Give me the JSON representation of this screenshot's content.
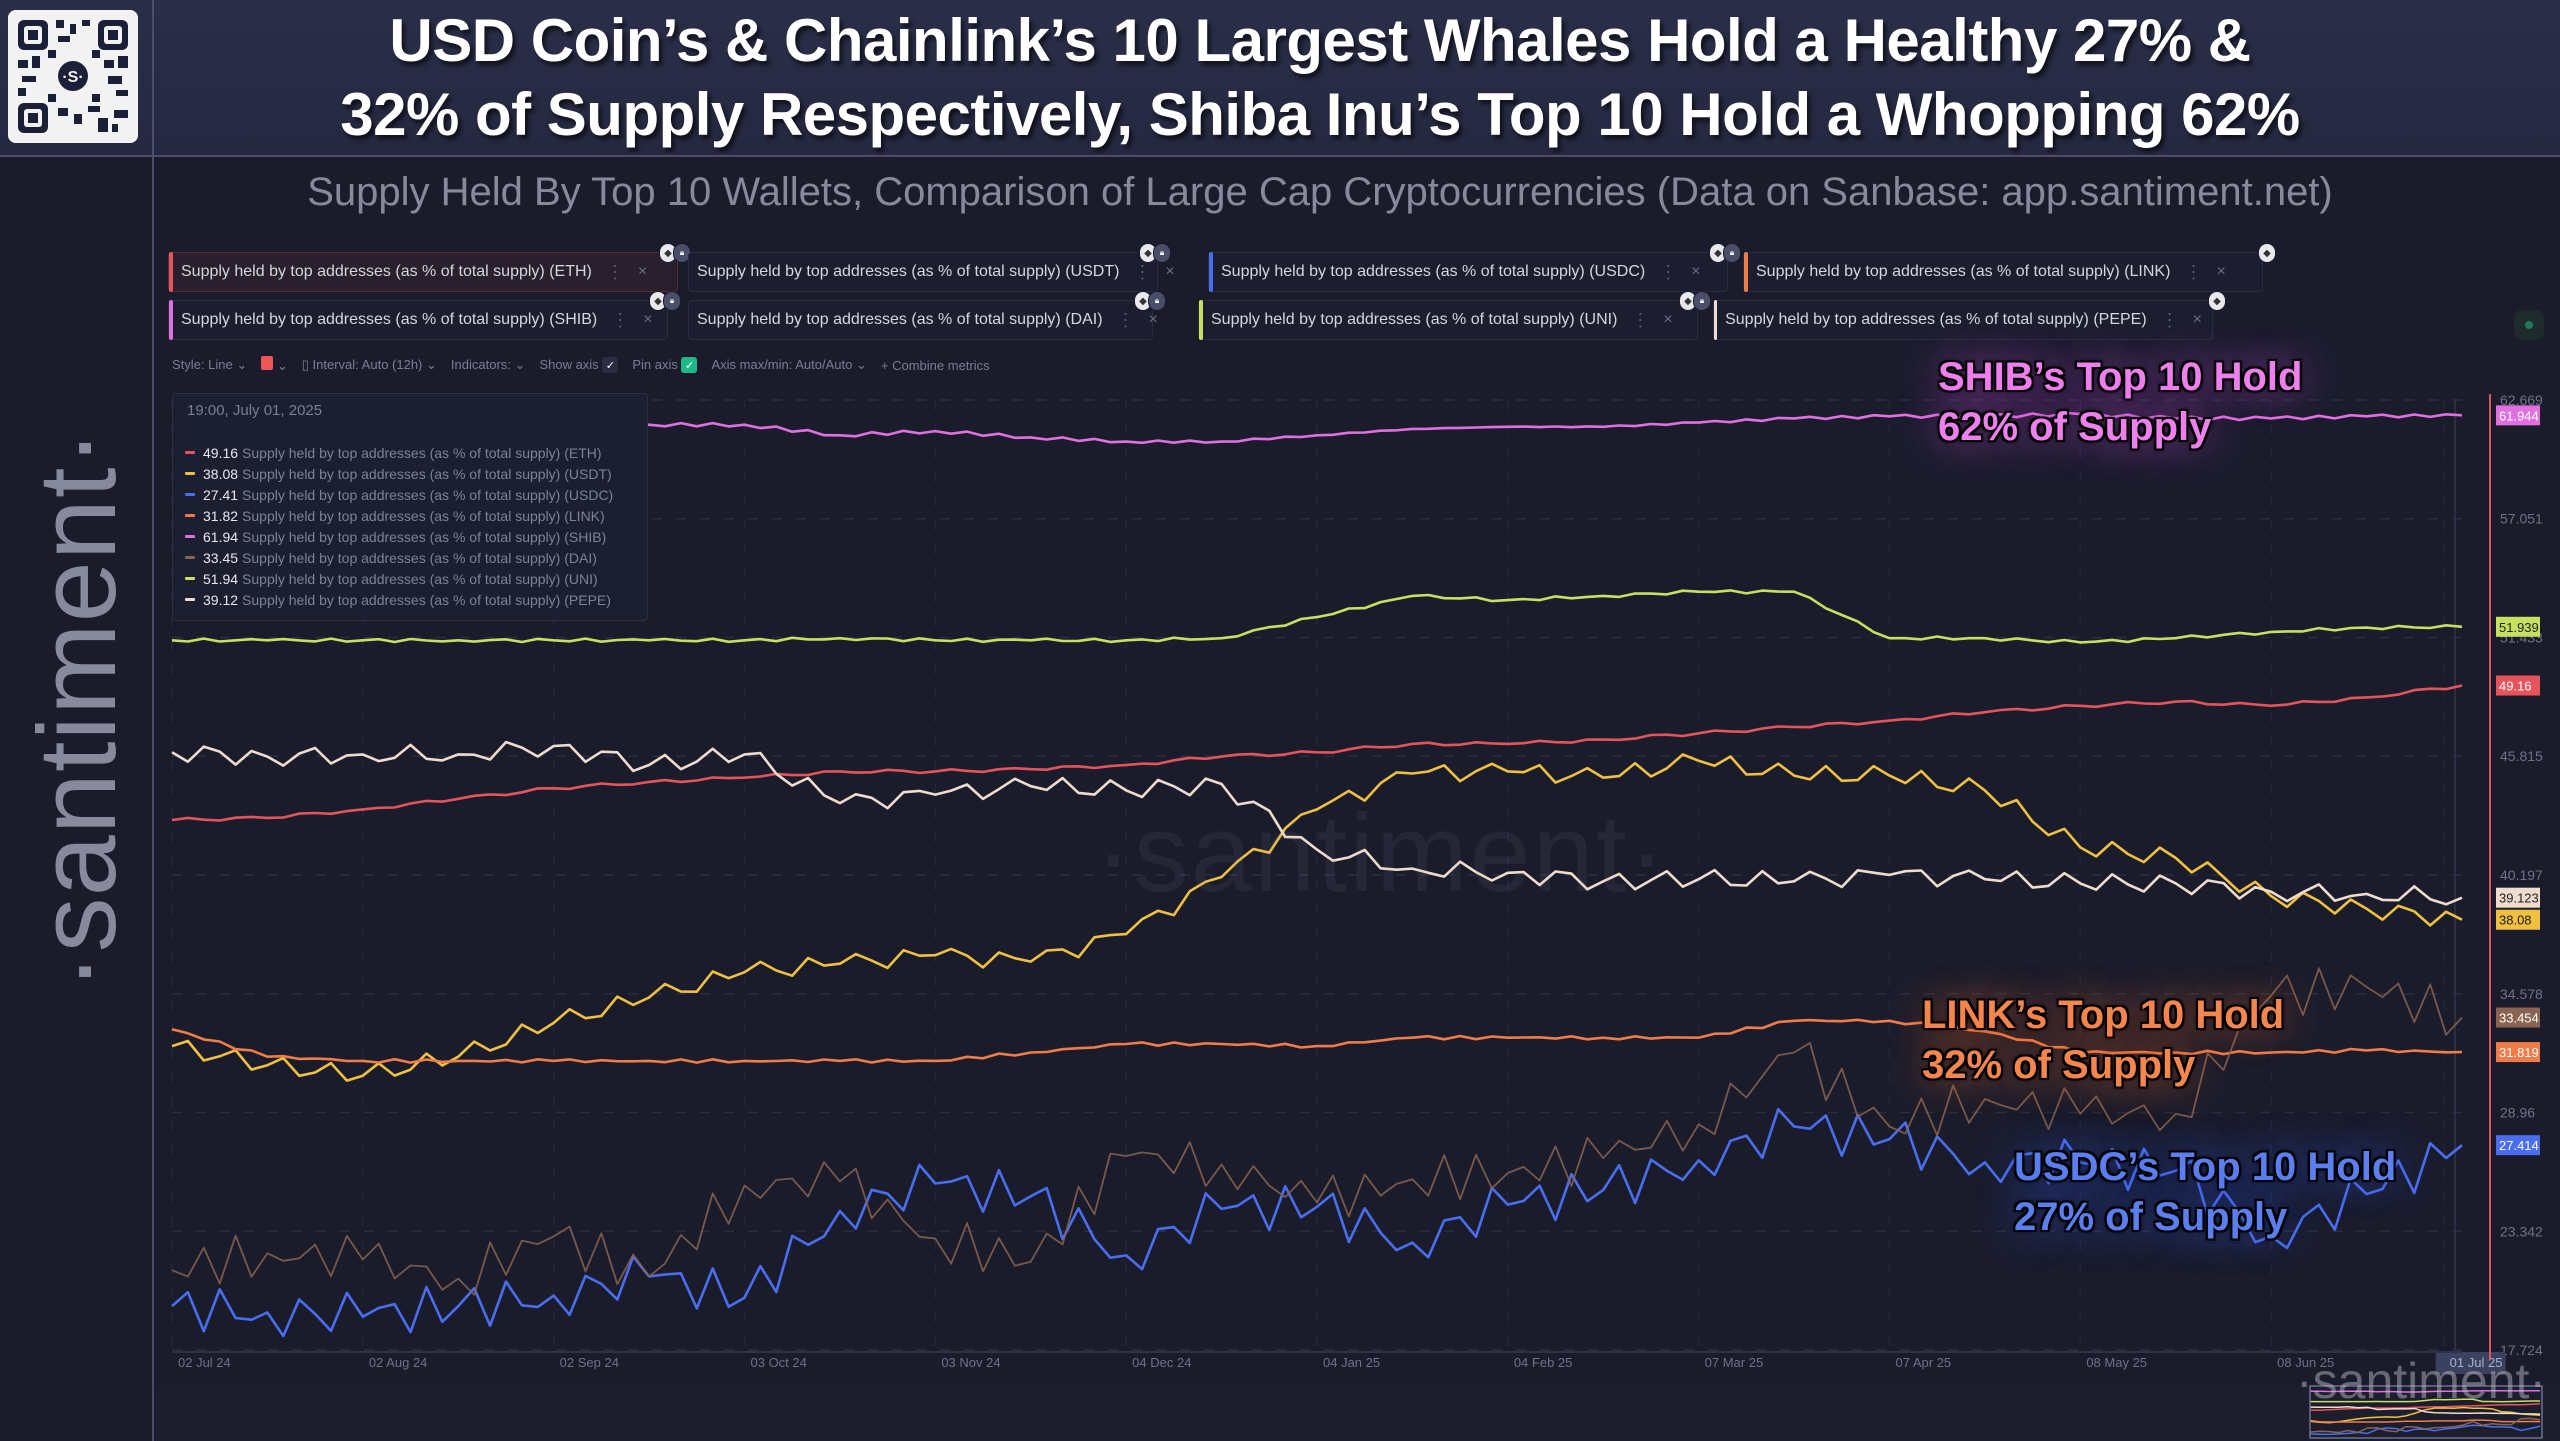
{
  "header": {
    "title_line1": "USD Coin’s & Chainlink’s 10 Largest Whales Hold a Healthy 27% &",
    "title_line2": "32% of Supply Respectively, Shiba Inu’s Top 10 Hold a Whopping 62%",
    "subtitle": "Supply Held By Top 10 Wallets, Comparison of Large Cap Cryptocurrencies (Data on Sanbase: app.santiment.net)",
    "qr_icon": "qr-code-icon"
  },
  "sidebar": {
    "logo_text": "·santiment·"
  },
  "metrics": [
    {
      "label": "Supply held by top addresses (as % of total supply) (ETH)",
      "color": "#e5545c",
      "active": true
    },
    {
      "label": "Supply held by top addresses (as % of total supply) (USDT)",
      "color": "#f0c040"
    },
    {
      "label": "Supply held by top addresses (as % of total supply) (USDC)",
      "color": "#4a6ef0"
    },
    {
      "label": "Supply held by top addresses (as % of total supply) (LINK)",
      "color": "#f07c4a"
    },
    {
      "label": "Supply held by top addresses (as % of total supply) (SHIB)",
      "color": "#e070e0"
    },
    {
      "label": "Supply held by top addresses (as % of total supply) (DAI)",
      "color": "#8a6450"
    },
    {
      "label": "Supply held by top addresses (as % of total supply) (UNI)",
      "color": "#c8e060"
    },
    {
      "label": "Supply held by top addresses (as % of total supply) (PEPE)",
      "color": "#f0dccc"
    }
  ],
  "metric_actions": {
    "menu_icon": "⋮",
    "close_icon": "×",
    "lock_icon": "lock-icon",
    "eth_icon": "ethereum-icon"
  },
  "toolbar": {
    "style": "Style: Line",
    "interval": "Interval: Auto (12h)",
    "indicators": "Indicators:",
    "show_axis": "Show axis",
    "pin_axis": "Pin axis",
    "axis_maxmin": "Axis max/min: Auto/Auto",
    "combine": "+ Combine metrics",
    "chevron": "⌄",
    "check": "✓"
  },
  "tooltip": {
    "date": "19:00, July 01, 2025",
    "rows": [
      {
        "value": "49.16",
        "name": "Supply held by top addresses (as % of total supply) (ETH)",
        "color": "#e5545c"
      },
      {
        "value": "38.08",
        "name": "Supply held by top addresses (as % of total supply) (USDT)",
        "color": "#f0c040"
      },
      {
        "value": "27.41",
        "name": "Supply held by top addresses (as % of total supply) (USDC)",
        "color": "#4a6ef0"
      },
      {
        "value": "31.82",
        "name": "Supply held by top addresses (as % of total supply) (LINK)",
        "color": "#f07c4a"
      },
      {
        "value": "61.94",
        "name": "Supply held by top addresses (as % of total supply) (SHIB)",
        "color": "#e070e0"
      },
      {
        "value": "33.45",
        "name": "Supply held by top addresses (as % of total supply) (DAI)",
        "color": "#8a6450"
      },
      {
        "value": "51.94",
        "name": "Supply held by top addresses (as % of total supply) (UNI)",
        "color": "#c8e060"
      },
      {
        "value": "39.12",
        "name": "Supply held by top addresses (as % of total supply) (PEPE)",
        "color": "#f0dccc"
      }
    ]
  },
  "annotations": {
    "shib": [
      "SHIB’s Top 10 Hold",
      "62% of Supply"
    ],
    "link": [
      "LINK’s Top 10 Hold",
      "32% of Supply"
    ],
    "usdc": [
      "USDC’s Top 10 Hold",
      "27% of Supply"
    ]
  },
  "watermark": "·santiment·",
  "chart_data": {
    "type": "line",
    "title": "Supply held by top addresses (as % of total supply)",
    "xlabel": "",
    "ylabel": "",
    "ylim": [
      17.724,
      62.669
    ],
    "yticks": [
      62.669,
      57.051,
      51.433,
      45.815,
      40.197,
      34.578,
      28.96,
      23.342,
      17.724
    ],
    "grid": true,
    "legend": "top-left",
    "x_tick_labels": [
      "02 Jul 24",
      "02 Aug 24",
      "02 Sep 24",
      "03 Oct 24",
      "03 Nov 24",
      "04 Dec 24",
      "04 Jan 25",
      "04 Feb 25",
      "07 Mar 25",
      "07 Apr 25",
      "08 May 25",
      "08 Jun 25",
      "01 Jul 25"
    ],
    "x_highlight": "01 Jul 25",
    "x": [
      "2024-07-02",
      "2024-07-17",
      "2024-08-02",
      "2024-08-17",
      "2024-09-02",
      "2024-09-17",
      "2024-10-03",
      "2024-10-18",
      "2024-11-03",
      "2024-11-18",
      "2024-12-04",
      "2024-12-19",
      "2025-01-04",
      "2025-01-19",
      "2025-02-04",
      "2025-02-19",
      "2025-03-07",
      "2025-03-22",
      "2025-04-07",
      "2025-04-22",
      "2025-05-08",
      "2025-05-23",
      "2025-06-08",
      "2025-06-20",
      "2025-07-01"
    ],
    "series": [
      {
        "name": "ETH",
        "color": "#e5545c",
        "last": 49.16,
        "values": [
          42.8,
          42.9,
          43.3,
          43.8,
          44.3,
          44.6,
          44.8,
          45.1,
          45.1,
          45.2,
          45.4,
          45.8,
          46.0,
          46.4,
          46.4,
          46.6,
          46.9,
          47.2,
          47.5,
          47.9,
          48.2,
          48.4,
          48.2,
          48.6,
          49.16
        ]
      },
      {
        "name": "USDT",
        "color": "#f0c040",
        "last": 38.08,
        "values": [
          32.1,
          31.2,
          30.7,
          31.6,
          33.2,
          34.4,
          35.6,
          36.0,
          36.4,
          36.1,
          37.4,
          40.1,
          43.3,
          45.0,
          45.1,
          44.8,
          45.6,
          44.9,
          44.9,
          44.2,
          41.5,
          41.0,
          39.2,
          38.6,
          38.08
        ]
      },
      {
        "name": "USDC",
        "color": "#4a6ef0",
        "last": 27.414,
        "values": [
          19.8,
          19.5,
          19.3,
          19.8,
          20.3,
          21.2,
          20.2,
          24.3,
          25.6,
          25.0,
          22.2,
          24.4,
          24.5,
          22.8,
          24.6,
          25.3,
          26.7,
          28.3,
          27.7,
          26.6,
          26.6,
          26.2,
          23.1,
          25.1,
          27.414
        ]
      },
      {
        "name": "LINK",
        "color": "#f07c4a",
        "last": 31.819,
        "values": [
          32.9,
          31.6,
          31.4,
          31.4,
          31.4,
          31.4,
          31.4,
          31.4,
          31.4,
          31.8,
          32.2,
          32.2,
          32.1,
          32.5,
          32.5,
          32.5,
          32.5,
          33.3,
          33.3,
          32.8,
          31.8,
          31.8,
          31.8,
          31.9,
          31.819
        ]
      },
      {
        "name": "SHIB",
        "color": "#e070e0",
        "last": 61.944,
        "values": [
          61.4,
          61.5,
          61.2,
          61.3,
          61.4,
          61.5,
          61.5,
          61.0,
          61.2,
          60.9,
          60.7,
          60.7,
          61.0,
          61.3,
          61.4,
          61.4,
          61.6,
          61.8,
          61.9,
          61.9,
          62.0,
          61.8,
          61.8,
          61.9,
          61.944
        ]
      },
      {
        "name": "DAI",
        "color": "#8a6450",
        "last": 33.454,
        "values": [
          21.5,
          22.3,
          22.0,
          21.1,
          23.1,
          21.2,
          25.5,
          25.7,
          23.0,
          21.9,
          26.9,
          26.5,
          24.7,
          25.8,
          26.1,
          26.8,
          28.4,
          31.8,
          28.3,
          29.6,
          28.9,
          28.9,
          34.5,
          34.9,
          33.454
        ]
      },
      {
        "name": "UNI",
        "color": "#c8e060",
        "last": 51.939,
        "values": [
          51.3,
          51.3,
          51.3,
          51.3,
          51.3,
          51.3,
          51.3,
          51.4,
          51.3,
          51.3,
          51.3,
          51.4,
          52.4,
          53.4,
          53.2,
          53.4,
          53.6,
          53.6,
          51.4,
          51.4,
          51.2,
          51.4,
          51.7,
          51.9,
          51.939
        ]
      },
      {
        "name": "PEPE",
        "color": "#f0dccc",
        "last": 39.123,
        "values": [
          46.0,
          45.8,
          45.9,
          45.9,
          46.3,
          45.4,
          45.9,
          43.6,
          44.0,
          44.4,
          44.2,
          44.5,
          41.4,
          40.5,
          40.3,
          39.9,
          40.0,
          39.9,
          40.2,
          40.0,
          39.8,
          39.8,
          39.4,
          39.3,
          39.123
        ]
      }
    ]
  }
}
